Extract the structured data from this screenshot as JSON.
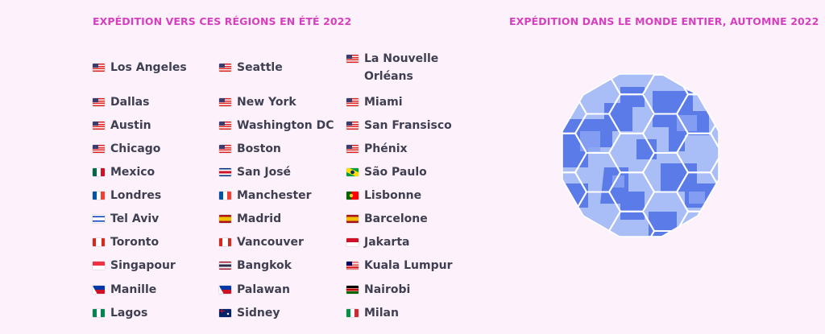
{
  "headings": {
    "summer": "EXPÉDITION VERS CES RÉGIONS EN ÉTÉ 2022",
    "autumn": "EXPÉDITION DANS LE MONDE ENTIER, AUTOMNE 2022"
  },
  "colors": {
    "heading": "#d63fbe",
    "text": "#3f3f52",
    "background": "#fdf2fb",
    "globe_dark": "#5b7ce8",
    "globe_light": "#a9bdf7"
  },
  "globe": {
    "icon": "hexagon-globe-icon"
  },
  "cities": [
    {
      "name": "Los Angeles",
      "flag": "us"
    },
    {
      "name": "Seattle",
      "flag": "us"
    },
    {
      "name": "La Nouvelle Orléans",
      "flag": "us"
    },
    {
      "name": "Dallas",
      "flag": "us"
    },
    {
      "name": "New York",
      "flag": "us"
    },
    {
      "name": "Miami",
      "flag": "us"
    },
    {
      "name": "Austin",
      "flag": "us"
    },
    {
      "name": "Washington DC",
      "flag": "us"
    },
    {
      "name": "San Fransisco",
      "flag": "us"
    },
    {
      "name": "Chicago",
      "flag": "us"
    },
    {
      "name": "Boston",
      "flag": "us"
    },
    {
      "name": "Phénix",
      "flag": "us"
    },
    {
      "name": "Mexico",
      "flag": "mx"
    },
    {
      "name": "San José",
      "flag": "cr"
    },
    {
      "name": "São Paulo",
      "flag": "br"
    },
    {
      "name": "Londres",
      "flag": "fr"
    },
    {
      "name": "Manchester",
      "flag": "fr"
    },
    {
      "name": "Lisbonne",
      "flag": "pt"
    },
    {
      "name": "Tel Aviv",
      "flag": "il"
    },
    {
      "name": "Madrid",
      "flag": "es"
    },
    {
      "name": "Barcelone",
      "flag": "es"
    },
    {
      "name": "Toronto",
      "flag": "ca"
    },
    {
      "name": "Vancouver",
      "flag": "ca"
    },
    {
      "name": "Jakarta",
      "flag": "id"
    },
    {
      "name": "Singapour",
      "flag": "sg"
    },
    {
      "name": "Bangkok",
      "flag": "th"
    },
    {
      "name": "Kuala Lumpur",
      "flag": "my"
    },
    {
      "name": "Manille",
      "flag": "ph"
    },
    {
      "name": "Palawan",
      "flag": "ph"
    },
    {
      "name": "Nairobi",
      "flag": "ke"
    },
    {
      "name": "Lagos",
      "flag": "ng"
    },
    {
      "name": "Sidney",
      "flag": "au"
    },
    {
      "name": "Milan",
      "flag": "it"
    }
  ]
}
